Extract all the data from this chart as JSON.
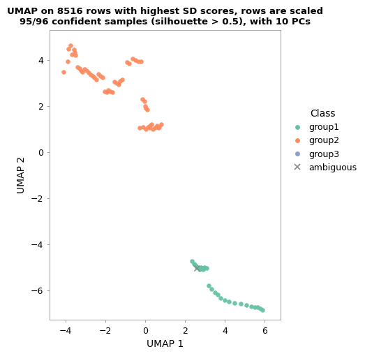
{
  "title": "UMAP on 8516 rows with highest SD scores, rows are scaled\n95/96 confident samples (silhouette > 0.5), with 10 PCs",
  "xlabel": "UMAP 1",
  "ylabel": "UMAP 2",
  "xlim": [
    -4.8,
    6.8
  ],
  "ylim": [
    -7.3,
    5.3
  ],
  "xticks": [
    -4,
    -2,
    0,
    2,
    4,
    6
  ],
  "yticks": [
    -6,
    -4,
    -2,
    0,
    2,
    4
  ],
  "group1_color": "#66C2A5",
  "group2_color": "#FC8D62",
  "group3_color": "#8DA0CB",
  "ambiguous_color": "#888888",
  "background_color": "#FFFFFF",
  "group2_x": [
    -4.1,
    -3.85,
    -3.75,
    -3.6,
    -3.55,
    -3.5,
    -3.9,
    -3.7,
    -3.4,
    -3.3,
    -3.25,
    -3.15,
    -3.05,
    -2.95,
    -2.85,
    -2.75,
    -2.65,
    -2.55,
    -2.45,
    -2.35,
    -2.25,
    -2.15,
    -2.05,
    -1.95,
    -1.85,
    -1.75,
    -1.65,
    -1.55,
    -1.45,
    -1.35,
    -1.25,
    -1.15,
    -0.9,
    -0.8,
    -0.65,
    -0.5,
    -0.35,
    -0.2,
    -0.15,
    -0.05,
    0.0,
    0.05,
    0.1,
    -0.3,
    -0.1,
    0.05,
    0.15,
    0.2,
    0.25,
    0.3,
    0.4,
    0.5,
    0.55,
    0.6,
    0.65,
    0.7,
    0.8
  ],
  "group2_y": [
    3.5,
    4.5,
    4.65,
    4.45,
    4.35,
    4.2,
    3.95,
    4.25,
    3.7,
    3.65,
    3.55,
    3.5,
    3.6,
    3.55,
    3.45,
    3.35,
    3.3,
    3.25,
    3.15,
    3.4,
    3.3,
    3.25,
    2.65,
    2.6,
    2.7,
    2.65,
    2.6,
    3.05,
    3.0,
    2.95,
    3.1,
    3.15,
    3.9,
    3.85,
    4.05,
    4.0,
    3.95,
    3.95,
    2.3,
    2.2,
    2.0,
    1.9,
    1.85,
    1.05,
    1.1,
    1.0,
    1.1,
    1.05,
    1.15,
    1.2,
    1.0,
    1.05,
    1.1,
    1.15,
    1.05,
    1.1,
    1.2
  ],
  "group1_x": [
    2.35,
    2.45,
    2.5,
    2.55,
    2.6,
    2.65,
    2.7,
    2.75,
    2.8,
    2.85,
    2.9,
    2.95,
    3.0,
    3.1,
    3.2,
    3.35,
    3.5,
    3.65,
    3.8,
    4.0,
    4.2,
    4.5,
    4.8,
    5.1,
    5.35,
    5.5,
    5.65,
    5.8,
    5.9
  ],
  "group1_y": [
    -4.75,
    -4.85,
    -4.9,
    -4.95,
    -5.0,
    -5.0,
    -5.05,
    -5.1,
    -5.0,
    -5.05,
    -5.1,
    -5.05,
    -5.0,
    -5.05,
    -5.8,
    -5.95,
    -6.1,
    -6.2,
    -6.35,
    -6.45,
    -6.5,
    -6.55,
    -6.6,
    -6.65,
    -6.7,
    -6.75,
    -6.75,
    -6.8,
    -6.85
  ],
  "ambiguous_x": [
    2.6
  ],
  "ambiguous_y": [
    -5.05
  ],
  "legend_title": "Class",
  "marker_size": 22
}
